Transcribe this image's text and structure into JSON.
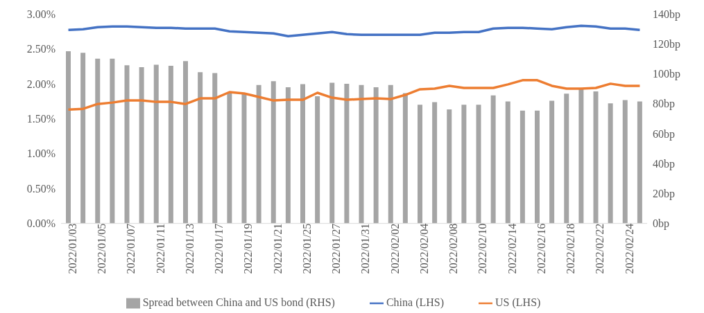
{
  "chart_data": {
    "type": "line",
    "categories": [
      "2022/01/03",
      null,
      "2022/01/05",
      null,
      "2022/01/07",
      null,
      "2022/01/11",
      null,
      "2022/01/13",
      null,
      "2022/01/17",
      null,
      "2022/01/19",
      null,
      "2022/01/21",
      null,
      "2022/01/25",
      null,
      "2022/01/27",
      null,
      "2022/01/31",
      null,
      "2022/02/02",
      null,
      "2022/02/04",
      null,
      "2022/02/08",
      null,
      "2022/02/10",
      null,
      "2022/02/14",
      null,
      "2022/02/16",
      null,
      "2022/02/18",
      null,
      "2022/02/22",
      null,
      "2022/02/24",
      null
    ],
    "series": [
      {
        "name": "Spread between China and US bond (RHS)",
        "type": "bar",
        "axis": "y2",
        "color": "#a5a5a5",
        "values": [
          115,
          114,
          110,
          110,
          105.6,
          104.4,
          106,
          105.3,
          108.4,
          101,
          100.5,
          87,
          87,
          92.5,
          95,
          91,
          93,
          85,
          94,
          93.3,
          92.5,
          91,
          92.5,
          87,
          79.3,
          81,
          76.2,
          79.3,
          79.3,
          85.5,
          81.5,
          75.4,
          75.4,
          82,
          86.7,
          90,
          88.2,
          80.2,
          82.4,
          81.5
        ]
      },
      {
        "name": "China (LHS)",
        "color": "#4472c4",
        "values": [
          2.77,
          2.78,
          2.81,
          2.82,
          2.82,
          2.81,
          2.8,
          2.8,
          2.79,
          2.79,
          2.79,
          2.75,
          2.74,
          2.73,
          2.72,
          2.68,
          2.7,
          2.72,
          2.74,
          2.71,
          2.7,
          2.7,
          2.7,
          2.7,
          2.7,
          2.73,
          2.73,
          2.74,
          2.74,
          2.79,
          2.8,
          2.8,
          2.79,
          2.78,
          2.81,
          2.83,
          2.82,
          2.79,
          2.79,
          2.77
        ]
      },
      {
        "name": "US (LHS)",
        "color": "#ed7d31",
        "values": [
          1.63,
          1.64,
          1.71,
          1.73,
          1.76,
          1.76,
          1.74,
          1.74,
          1.71,
          1.79,
          1.79,
          1.88,
          1.86,
          1.81,
          1.76,
          1.77,
          1.77,
          1.87,
          1.8,
          1.77,
          1.78,
          1.79,
          1.78,
          1.84,
          1.92,
          1.93,
          1.97,
          1.94,
          1.94,
          1.94,
          1.99,
          2.05,
          2.05,
          1.97,
          1.93,
          1.93,
          1.94,
          2,
          1.97,
          1.97
        ]
      }
    ],
    "ylim": [
      0,
      3
    ],
    "yticks": [
      {
        "value": 0,
        "label": "0.00%"
      },
      {
        "value": 0.5,
        "label": "0.50%"
      },
      {
        "value": 1,
        "label": "1.00%"
      },
      {
        "value": 1.5,
        "label": "1.50%"
      },
      {
        "value": 2,
        "label": "2.00%"
      },
      {
        "value": 2.5,
        "label": "2.50%"
      },
      {
        "value": 3,
        "label": "3.00%"
      }
    ],
    "y2lim": [
      0,
      140
    ],
    "y2ticks": [
      {
        "value": 0,
        "label": "0bp"
      },
      {
        "value": 20,
        "label": "20bp"
      },
      {
        "value": 40,
        "label": "40bp"
      },
      {
        "value": 60,
        "label": "60bp"
      },
      {
        "value": 80,
        "label": "80bp"
      },
      {
        "value": 100,
        "label": "100bp"
      },
      {
        "value": 120,
        "label": "120bp"
      },
      {
        "value": 140,
        "label": "140bp"
      }
    ],
    "legend": "bottom",
    "marker": "none"
  }
}
